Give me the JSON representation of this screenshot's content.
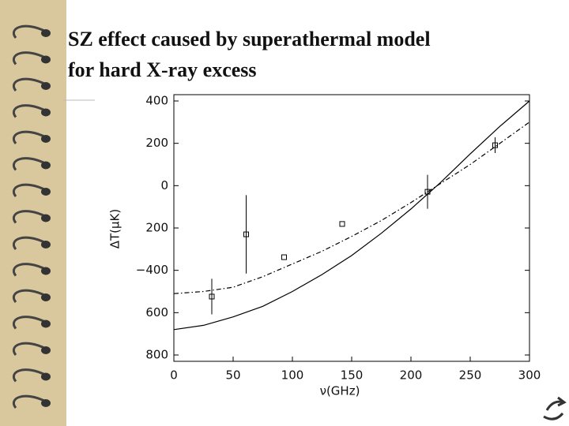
{
  "chart_data": {
    "type": "line",
    "title": [
      "SZ effect caused by superathermal model",
      "for hard X-ray excess"
    ],
    "xlabel": "ν(GHz)",
    "ylabel": "ΔT(μK)",
    "xlim": [
      0,
      300
    ],
    "ylim": [
      -800,
      400
    ],
    "xticks": [
      0,
      50,
      100,
      150,
      200,
      250,
      300
    ],
    "yticks": [
      400,
      200,
      0,
      {
        "value": -200,
        "label": "200"
      },
      {
        "value": -400,
        "label": "−400"
      },
      {
        "value": -600,
        "label": "600"
      },
      {
        "value": -800,
        "label": "800"
      }
    ],
    "series": [
      {
        "type": "line",
        "dash": "solid",
        "color": "#000000",
        "x": [
          0,
          25,
          50,
          75,
          100,
          125,
          150,
          175,
          200,
          225,
          250,
          275,
          300
        ],
        "values": [
          -680,
          -660,
          -620,
          -570,
          -500,
          -420,
          -330,
          -225,
          -110,
          15,
          150,
          280,
          400
        ]
      },
      {
        "type": "line",
        "dash": "dashdot",
        "color": "#000000",
        "x": [
          0,
          25,
          50,
          75,
          100,
          125,
          150,
          175,
          200,
          225,
          250,
          275,
          300
        ],
        "values": [
          -510,
          -500,
          -480,
          -430,
          -370,
          -310,
          -240,
          -165,
          -80,
          10,
          100,
          200,
          300
        ]
      },
      {
        "type": "scatter",
        "color": "#000000",
        "x": [
          32,
          61,
          93,
          142,
          214,
          271
        ],
        "values": [
          -524,
          -230,
          -338,
          -181,
          -29,
          191
        ],
        "errors": [
          84,
          185,
          null,
          null,
          80,
          37
        ]
      }
    ]
  }
}
